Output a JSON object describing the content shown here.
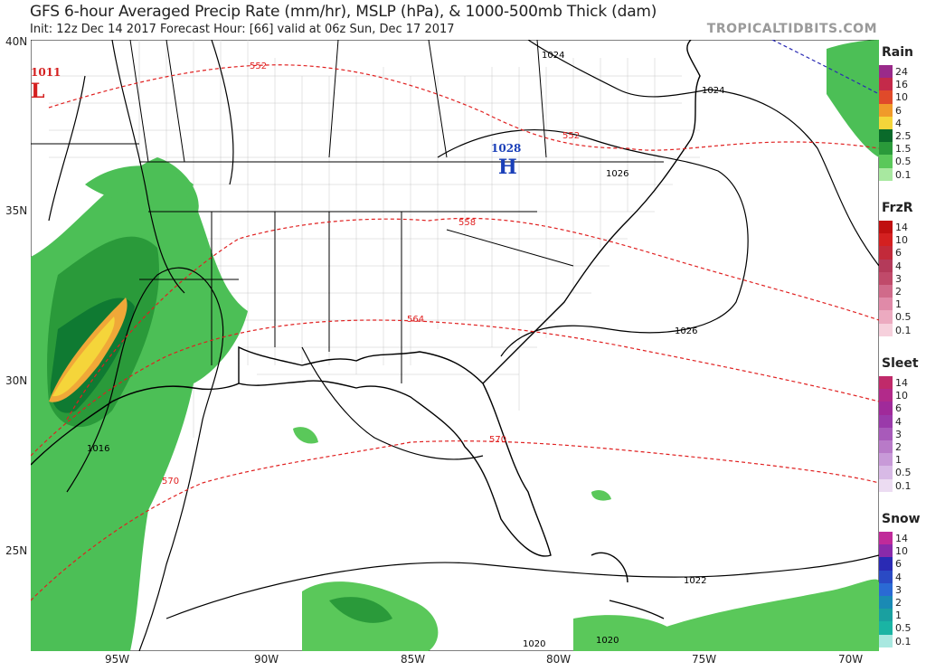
{
  "header": {
    "title": "GFS 6-hour Averaged Precip Rate (mm/hr), MSLP (hPa), & 1000-500mb Thick (dam)",
    "subtitle": "Init: 12z Dec 14 2017   Forecast Hour: [66]   valid at 06z Sun, Dec 17 2017",
    "brand": "TROPICALTIDBITS.COM"
  },
  "map": {
    "lat_labels": [
      "40N",
      "35N",
      "30N",
      "25N"
    ],
    "lon_labels": [
      "95W",
      "90W",
      "85W",
      "80W",
      "75W",
      "70W"
    ],
    "pressure_centers": [
      {
        "letter": "L",
        "value": "1011",
        "color": "#d42020"
      },
      {
        "letter": "H",
        "value": "1028",
        "color": "#1a3fb8"
      }
    ],
    "isobar_labels": [
      "1024",
      "1024",
      "1026",
      "1026",
      "1016",
      "1022",
      "1020",
      "1020"
    ],
    "thickness_labels": [
      "552",
      "552",
      "558",
      "564",
      "570",
      "570"
    ],
    "colors": {
      "land": "#ffffff",
      "ocean": "#ffffff",
      "border": "#000000",
      "county": "#b0b0b0",
      "isobar": "#000000",
      "thickness": "#e02020"
    }
  },
  "legends": [
    {
      "title": "Rain",
      "ticks": [
        "24",
        "16",
        "10",
        "6",
        "4",
        "2.5",
        "1.5",
        "0.5",
        "0.1"
      ],
      "colors": [
        "#9a2a8a",
        "#c42a4a",
        "#e04a2a",
        "#f09a2a",
        "#f5d53a",
        "#0a6a2a",
        "#2a9a3a",
        "#5ac85a",
        "#a8e8a0"
      ]
    },
    {
      "title": "FrzR",
      "ticks": [
        "14",
        "10",
        "6",
        "4",
        "3",
        "2",
        "1",
        "0.5",
        "0.1"
      ],
      "colors": [
        "#c01010",
        "#d42020",
        "#c22a3a",
        "#b43a5a",
        "#c04a6a",
        "#d06a8a",
        "#e08aa8",
        "#ecaac0",
        "#f6d0dc"
      ]
    },
    {
      "title": "Sleet",
      "ticks": [
        "14",
        "10",
        "6",
        "4",
        "3",
        "2",
        "1",
        "0.5",
        "0.1"
      ],
      "colors": [
        "#c02a6a",
        "#b22a8a",
        "#a02a9a",
        "#9a3aaa",
        "#a85aba",
        "#b87ac8",
        "#c89ad8",
        "#d8bae6",
        "#ecdcf2"
      ]
    },
    {
      "title": "Snow",
      "ticks": [
        "14",
        "10",
        "6",
        "4",
        "3",
        "2",
        "1",
        "0.5",
        "0.1"
      ],
      "colors": [
        "#c02a9a",
        "#8a2aaa",
        "#2a2ab4",
        "#2a4ac4",
        "#2a6ad4",
        "#1a8ab4",
        "#1aa0a0",
        "#1ab4a4",
        "#a8e8e0"
      ]
    }
  ]
}
